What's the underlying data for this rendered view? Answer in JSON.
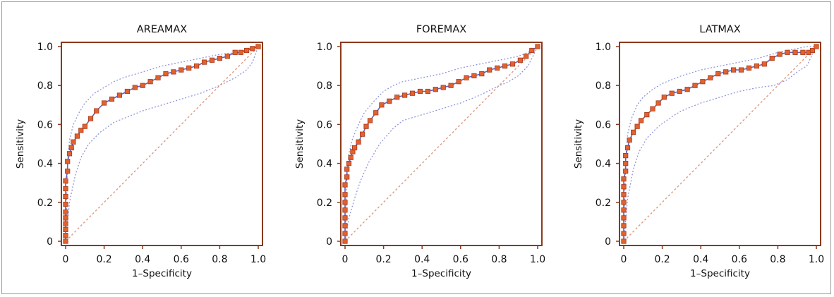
{
  "chart_data": [
    {
      "type": "line",
      "title": "AREAMAX",
      "xlabel": "1–Specificity",
      "ylabel": "Sensitivity",
      "xlim": [
        0,
        1
      ],
      "ylim": [
        0,
        1
      ],
      "xticks": [
        "0",
        "0.2",
        "0.4",
        "0.6",
        "0.8",
        "1.0"
      ],
      "yticks": [
        "0",
        "0.2",
        "0.4",
        "0.6",
        "0.8",
        "1.0"
      ],
      "grid": false,
      "series": [
        {
          "role": "roc",
          "x": [
            0,
            0,
            0,
            0,
            0,
            0,
            0,
            0,
            0,
            0,
            0.01,
            0.01,
            0.02,
            0.03,
            0.04,
            0.06,
            0.08,
            0.1,
            0.13,
            0.16,
            0.2,
            0.24,
            0.28,
            0.32,
            0.36,
            0.4,
            0.44,
            0.48,
            0.52,
            0.56,
            0.6,
            0.64,
            0.68,
            0.72,
            0.76,
            0.8,
            0.84,
            0.88,
            0.91,
            0.94,
            0.97,
            1.0
          ],
          "y": [
            0,
            0.03,
            0.06,
            0.09,
            0.12,
            0.15,
            0.19,
            0.23,
            0.27,
            0.31,
            0.36,
            0.41,
            0.45,
            0.48,
            0.51,
            0.54,
            0.57,
            0.59,
            0.63,
            0.67,
            0.71,
            0.73,
            0.75,
            0.77,
            0.79,
            0.8,
            0.82,
            0.84,
            0.86,
            0.87,
            0.88,
            0.89,
            0.9,
            0.92,
            0.93,
            0.94,
            0.95,
            0.97,
            0.97,
            0.98,
            0.99,
            1.0
          ]
        },
        {
          "role": "ci-upper",
          "x": [
            0,
            0.01,
            0.02,
            0.04,
            0.07,
            0.1,
            0.15,
            0.2,
            0.25,
            0.3,
            0.4,
            0.5,
            0.6,
            0.7,
            0.8,
            0.9,
            0.95,
            1.0
          ],
          "y": [
            0,
            0.4,
            0.52,
            0.6,
            0.66,
            0.71,
            0.76,
            0.79,
            0.82,
            0.84,
            0.87,
            0.9,
            0.92,
            0.94,
            0.96,
            0.97,
            0.99,
            1.0
          ]
        },
        {
          "role": "ci-lower",
          "x": [
            0,
            0.02,
            0.05,
            0.08,
            0.12,
            0.18,
            0.25,
            0.3,
            0.4,
            0.5,
            0.6,
            0.7,
            0.8,
            0.88,
            0.94,
            0.97,
            1.0
          ],
          "y": [
            0,
            0.2,
            0.34,
            0.43,
            0.5,
            0.56,
            0.61,
            0.63,
            0.67,
            0.7,
            0.73,
            0.76,
            0.8,
            0.84,
            0.88,
            0.92,
            1.0
          ]
        },
        {
          "role": "reference",
          "x": [
            0,
            1
          ],
          "y": [
            0,
            1
          ]
        }
      ]
    },
    {
      "type": "line",
      "title": "FOREMAX",
      "xlabel": "1–Specificity",
      "ylabel": "Sensitivity",
      "xlim": [
        0,
        1
      ],
      "ylim": [
        0,
        1
      ],
      "xticks": [
        "0",
        "0.2",
        "0.4",
        "0.6",
        "0.8",
        "1.0"
      ],
      "yticks": [
        "0",
        "0.2",
        "0.4",
        "0.6",
        "0.8",
        "1.0"
      ],
      "grid": false,
      "series": [
        {
          "role": "roc",
          "x": [
            0,
            0,
            0,
            0,
            0,
            0,
            0,
            0,
            0.01,
            0.01,
            0.02,
            0.03,
            0.04,
            0.05,
            0.07,
            0.09,
            0.11,
            0.13,
            0.16,
            0.19,
            0.23,
            0.27,
            0.31,
            0.35,
            0.39,
            0.43,
            0.47,
            0.51,
            0.55,
            0.59,
            0.63,
            0.67,
            0.71,
            0.75,
            0.79,
            0.83,
            0.87,
            0.91,
            0.94,
            0.97,
            1.0
          ],
          "y": [
            0,
            0.04,
            0.08,
            0.12,
            0.16,
            0.2,
            0.24,
            0.29,
            0.33,
            0.37,
            0.4,
            0.43,
            0.46,
            0.48,
            0.51,
            0.55,
            0.59,
            0.62,
            0.66,
            0.7,
            0.72,
            0.74,
            0.75,
            0.76,
            0.77,
            0.77,
            0.78,
            0.79,
            0.8,
            0.82,
            0.84,
            0.85,
            0.86,
            0.88,
            0.89,
            0.9,
            0.91,
            0.93,
            0.95,
            0.98,
            1.0
          ]
        },
        {
          "role": "ci-upper",
          "x": [
            0,
            0.01,
            0.02,
            0.04,
            0.07,
            0.1,
            0.15,
            0.2,
            0.25,
            0.3,
            0.4,
            0.5,
            0.6,
            0.7,
            0.8,
            0.9,
            0.95,
            1.0
          ],
          "y": [
            0,
            0.33,
            0.45,
            0.53,
            0.6,
            0.66,
            0.72,
            0.77,
            0.8,
            0.82,
            0.84,
            0.86,
            0.89,
            0.91,
            0.93,
            0.95,
            0.97,
            1.0
          ]
        },
        {
          "role": "ci-lower",
          "x": [
            0,
            0.02,
            0.05,
            0.08,
            0.12,
            0.18,
            0.25,
            0.3,
            0.4,
            0.5,
            0.6,
            0.7,
            0.78,
            0.85,
            0.9,
            0.95,
            1.0
          ],
          "y": [
            0,
            0.12,
            0.22,
            0.31,
            0.4,
            0.5,
            0.58,
            0.62,
            0.65,
            0.68,
            0.71,
            0.75,
            0.79,
            0.82,
            0.85,
            0.9,
            1.0
          ]
        },
        {
          "role": "reference",
          "x": [
            0,
            1
          ],
          "y": [
            0,
            1
          ]
        }
      ]
    },
    {
      "type": "line",
      "title": "LATMAX",
      "xlabel": "1–Specificity",
      "ylabel": "Sensitivity",
      "xlim": [
        0,
        1
      ],
      "ylim": [
        0,
        1
      ],
      "xticks": [
        "0",
        "0.2",
        "0.4",
        "0.6",
        "0.8",
        "1.0"
      ],
      "yticks": [
        "0",
        "0.2",
        "0.4",
        "0.6",
        "0.8",
        "1.0"
      ],
      "grid": false,
      "series": [
        {
          "role": "roc",
          "x": [
            0,
            0,
            0,
            0,
            0,
            0,
            0,
            0,
            0,
            0.01,
            0.01,
            0.01,
            0.02,
            0.03,
            0.05,
            0.07,
            0.09,
            0.12,
            0.15,
            0.18,
            0.21,
            0.25,
            0.29,
            0.33,
            0.37,
            0.41,
            0.45,
            0.49,
            0.53,
            0.57,
            0.61,
            0.65,
            0.69,
            0.73,
            0.77,
            0.81,
            0.85,
            0.89,
            0.93,
            0.96,
            0.98,
            1.0
          ],
          "y": [
            0,
            0.04,
            0.08,
            0.12,
            0.16,
            0.2,
            0.24,
            0.28,
            0.32,
            0.36,
            0.4,
            0.44,
            0.48,
            0.52,
            0.56,
            0.59,
            0.62,
            0.65,
            0.68,
            0.71,
            0.74,
            0.76,
            0.77,
            0.78,
            0.8,
            0.82,
            0.84,
            0.86,
            0.87,
            0.88,
            0.88,
            0.89,
            0.9,
            0.91,
            0.94,
            0.96,
            0.97,
            0.97,
            0.97,
            0.97,
            0.98,
            1.0
          ]
        },
        {
          "role": "ci-upper",
          "x": [
            0,
            0.01,
            0.02,
            0.04,
            0.07,
            0.1,
            0.15,
            0.2,
            0.25,
            0.3,
            0.4,
            0.5,
            0.6,
            0.7,
            0.8,
            0.9,
            0.95,
            1.0
          ],
          "y": [
            0,
            0.42,
            0.55,
            0.63,
            0.7,
            0.74,
            0.78,
            0.81,
            0.83,
            0.85,
            0.88,
            0.9,
            0.92,
            0.94,
            0.97,
            0.99,
            1.0,
            1.0
          ]
        },
        {
          "role": "ci-lower",
          "x": [
            0,
            0.02,
            0.05,
            0.08,
            0.12,
            0.18,
            0.25,
            0.3,
            0.4,
            0.5,
            0.6,
            0.7,
            0.78,
            0.85,
            0.9,
            0.95,
            1.0
          ],
          "y": [
            0,
            0.22,
            0.37,
            0.46,
            0.53,
            0.59,
            0.64,
            0.67,
            0.71,
            0.74,
            0.77,
            0.79,
            0.8,
            0.83,
            0.87,
            0.9,
            1.0
          ]
        },
        {
          "role": "reference",
          "x": [
            0,
            1
          ],
          "y": [
            0,
            1
          ]
        }
      ]
    }
  ],
  "colors": {
    "axis_border": "#8a3a1c",
    "roc_marker_fill": "#e1622e",
    "roc_marker_stroke": "#a8381a",
    "roc_line": "#5a63c8",
    "ci_line": "#8e96d8",
    "reference_line": "#d99a84",
    "text": "#111111",
    "frame": "#9a9a9a"
  }
}
